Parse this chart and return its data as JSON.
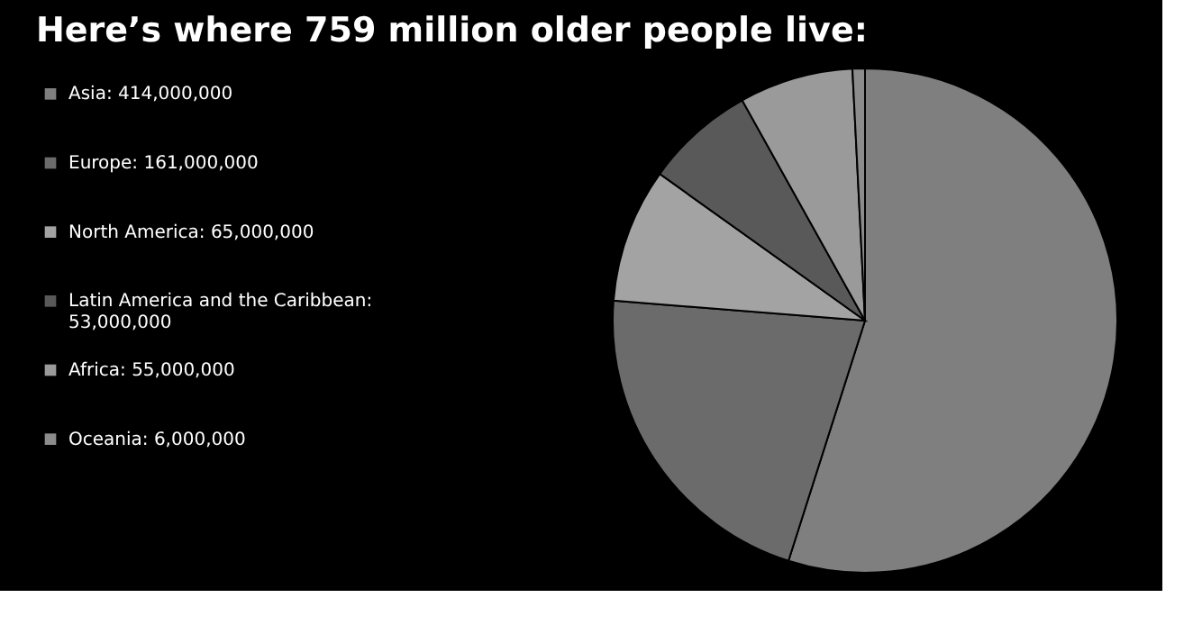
{
  "chart_data": {
    "type": "pie",
    "title": "Here’s where 759 million older people live:",
    "categories": [
      "Asia: 414,000,000",
      "Europe: 161,000,000",
      "North America: 65,000,000",
      "Latin America and the Caribbean: 53,000,000",
      "Africa: 55,000,000",
      "Oceania: 6,000,000"
    ],
    "values": [
      414000000,
      161000000,
      65000000,
      53000000,
      55000000,
      6000000
    ],
    "colors": [
      "#7f7f7f",
      "#6b6b6b",
      "#a3a3a3",
      "#595959",
      "#9a9a9a",
      "#8c8c8c"
    ],
    "legend": "left"
  }
}
